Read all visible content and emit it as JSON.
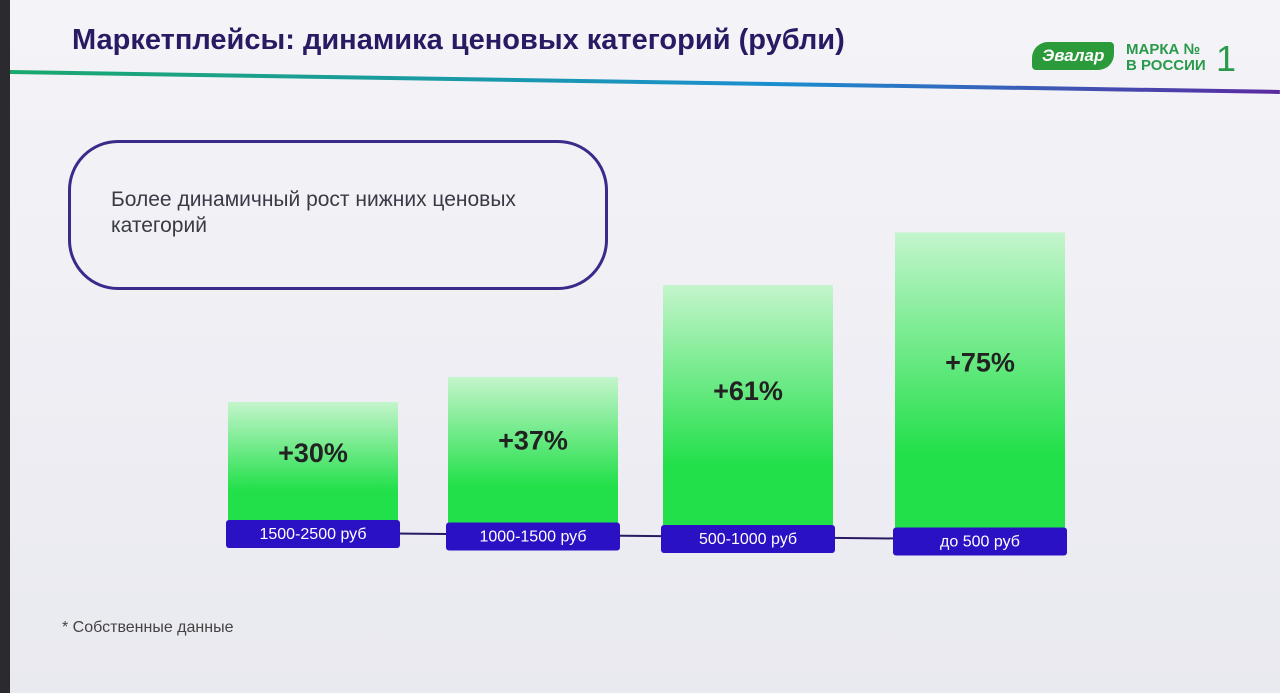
{
  "chart_data": {
    "type": "bar",
    "title": "Маркетплейсы: динамика ценовых категорий (рубли)",
    "annotation": "Более динамичный рост нижних ценовых категорий",
    "footnote": "* Собственные данные",
    "brand": {
      "name": "Эвалар",
      "slogan": [
        "МАРКА №",
        "В РОССИИ"
      ],
      "rank": "1"
    },
    "categories": [
      "1500-2500 руб",
      "1000-1500 руб",
      "500-1000 руб",
      "до 500 руб"
    ],
    "values": [
      30,
      37,
      61,
      75
    ],
    "value_labels": [
      "+30%",
      "+37%",
      "+61%",
      "+75%"
    ],
    "color": "#22e04a",
    "label_color": "#2a12c4"
  }
}
